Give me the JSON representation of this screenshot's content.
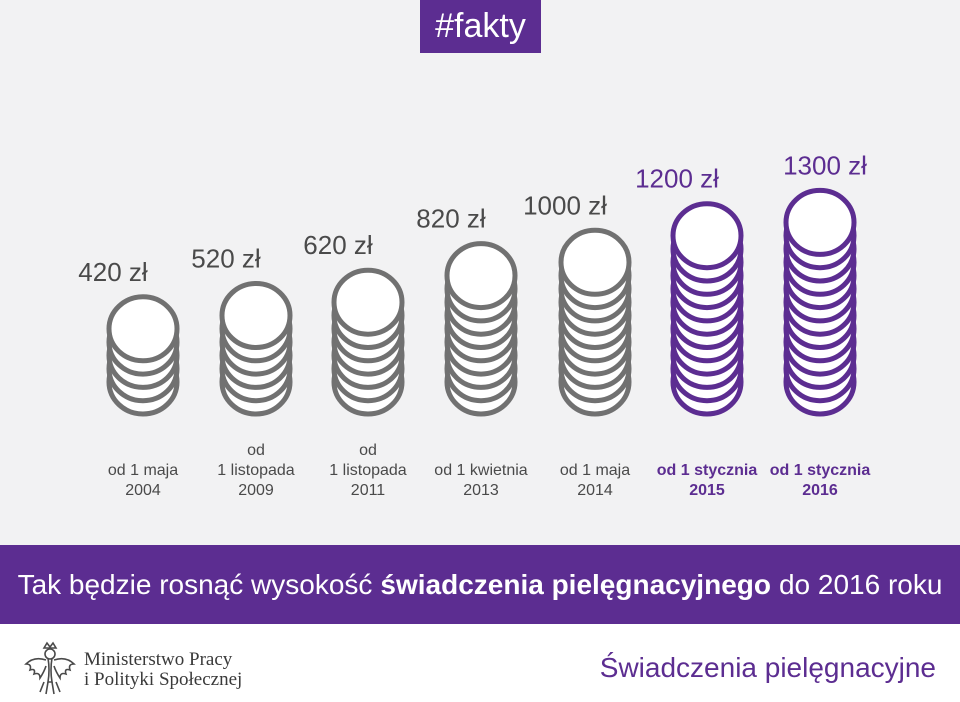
{
  "header": {
    "hashtag": "#fakty"
  },
  "chart_data": {
    "type": "bar",
    "currency": "zł",
    "categories": [
      [
        "od 1 maja",
        "2004"
      ],
      [
        "od",
        "1 listopada",
        "2009"
      ],
      [
        "od",
        "1 listopada",
        "2011"
      ],
      [
        "od 1 kwietnia",
        "2013"
      ],
      [
        "od 1 maja",
        "2014"
      ],
      [
        "od 1 stycznia",
        "2015"
      ],
      [
        "od 1 stycznia",
        "2016"
      ]
    ],
    "values": [
      420,
      520,
      620,
      820,
      1000,
      1200,
      1300
    ],
    "value_labels": [
      "420 zł",
      "520 zł",
      "620 zł",
      "820 zł",
      "1000 zł",
      "1200 zł",
      "1300 zł"
    ],
    "coin_value": 100,
    "highlighted": [
      false,
      false,
      false,
      false,
      false,
      true,
      true
    ],
    "colors": {
      "gray": "#717171",
      "purple": "#5c2d91",
      "coin_fill": "#ffffff",
      "label_gray": "#4a4a4a"
    }
  },
  "banner": {
    "part1": "Tak będzie rosnąć wysokość",
    "part2": "świadczenia pielęgnacyjnego",
    "part3": "do 2016 roku"
  },
  "footer": {
    "ministry_line1": "Ministerstwo Pracy",
    "ministry_line2": "i Polityki Społecznej",
    "brand": "Świadczenia pielęgnacyjne"
  }
}
